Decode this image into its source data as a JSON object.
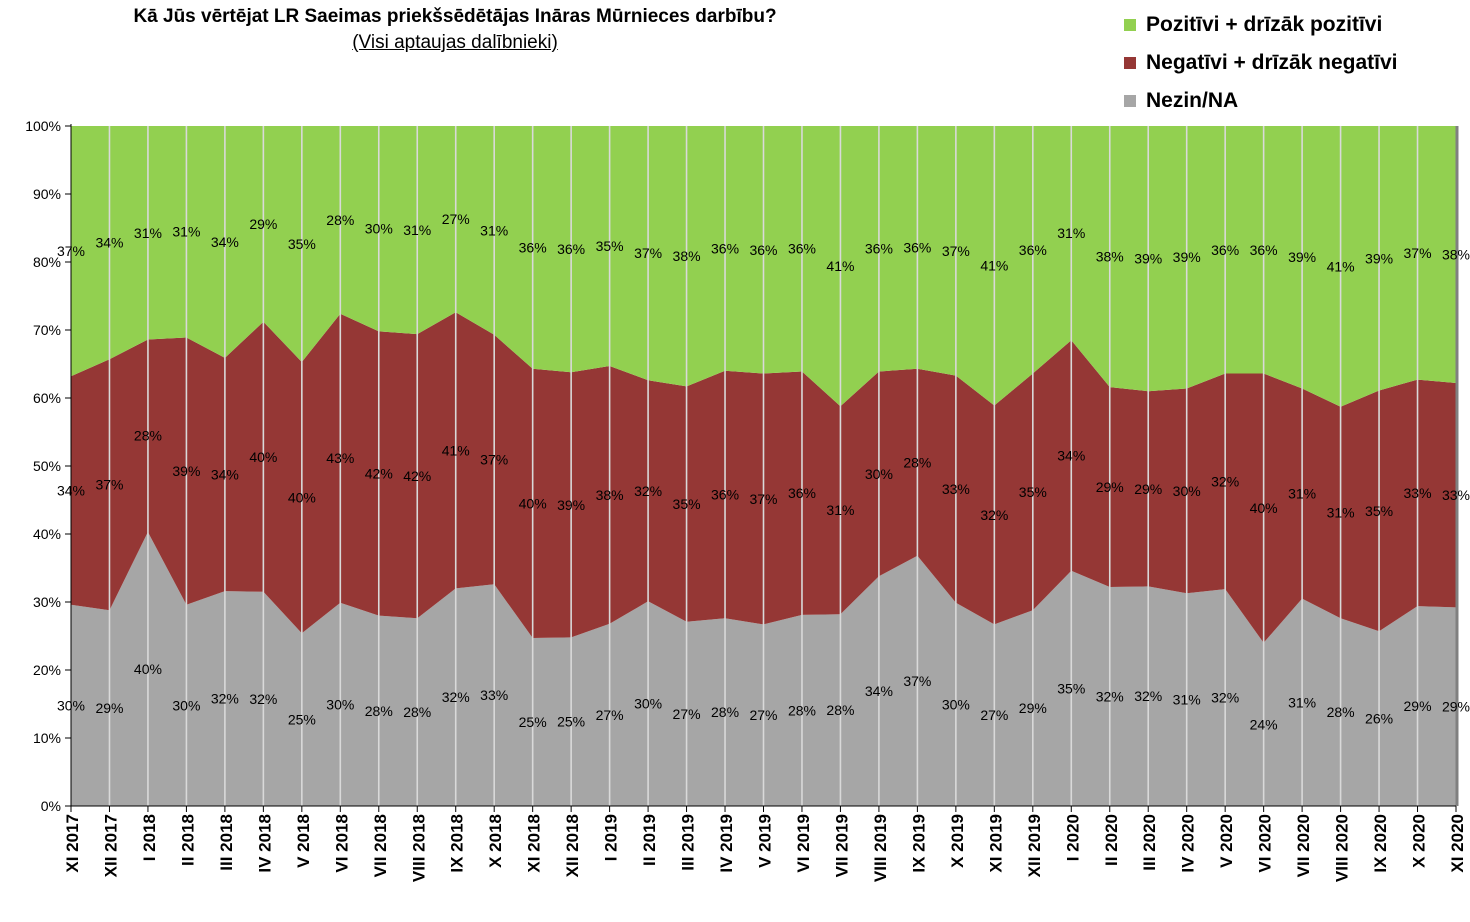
{
  "chart_data": {
    "type": "area",
    "stacked": true,
    "title": "Kā Jūs vērtējat LR Saeimas priekšsēdētājas Ināras Mūrnieces darbību?",
    "subtitle": "(Visi aptaujas dalībnieki)",
    "ylim": [
      0,
      100
    ],
    "yticks": [
      "0%",
      "10%",
      "20%",
      "30%",
      "40%",
      "50%",
      "60%",
      "70%",
      "80%",
      "90%",
      "100%"
    ],
    "legend_position": "top-right",
    "categories": [
      "XI 2017",
      "XII 2017",
      "I 2018",
      "II 2018",
      "III 2018",
      "IV 2018",
      "V 2018",
      "VI 2018",
      "VII 2018",
      "VIII 2018",
      "IX 2018",
      "X 2018",
      "XI 2018",
      "XII 2018",
      "I 2019",
      "II 2019",
      "III 2019",
      "IV 2019",
      "V 2019",
      "VI 2019",
      "VII 2019",
      "VIII 2019",
      "IX 2019",
      "X 2019",
      "XI 2019",
      "XII 2019",
      "I 2020",
      "II 2020",
      "III 2020",
      "IV 2020",
      "V 2020",
      "VI 2020",
      "VII 2020",
      "VIII 2020",
      "IX 2020",
      "X 2020",
      "XI 2020"
    ],
    "series": [
      {
        "name": "Nezin/NA",
        "color": "#a6a6a6",
        "values": [
          29.6,
          28.8,
          40.3,
          29.6,
          31.6,
          31.5,
          25.4,
          29.9,
          28.0,
          27.6,
          32.0,
          32.6,
          24.7,
          24.8,
          26.8,
          30.1,
          27.1,
          27.6,
          26.7,
          28.1,
          28.2,
          33.8,
          36.8,
          29.9,
          26.7,
          28.8,
          34.6,
          32.2,
          32.3,
          31.3,
          31.9,
          24.0,
          30.5,
          27.6,
          25.7,
          29.4,
          29.2
        ],
        "labels": [
          "30%",
          "29%",
          "40%",
          "30%",
          "32%",
          "32%",
          "25%",
          "30%",
          "28%",
          "28%",
          "32%",
          "33%",
          "25%",
          "25%",
          "27%",
          "30%",
          "27%",
          "28%",
          "27%",
          "28%",
          "28%",
          "34%",
          "37%",
          "30%",
          "27%",
          "29%",
          "35%",
          "32%",
          "32%",
          "31%",
          "32%",
          "24%",
          "31%",
          "28%",
          "26%",
          "29%",
          "29%"
        ]
      },
      {
        "name": "Negatīvi + drīzāk negatīvi",
        "color": "#953735",
        "values": [
          33.6,
          36.9,
          28.3,
          39.3,
          34.3,
          39.7,
          39.9,
          42.5,
          41.8,
          41.8,
          40.6,
          36.7,
          39.6,
          39.0,
          37.9,
          32.5,
          34.6,
          36.4,
          36.9,
          35.8,
          30.6,
          30.1,
          27.5,
          33.4,
          32.2,
          34.8,
          33.9,
          29.4,
          28.7,
          30.1,
          31.7,
          39.6,
          30.9,
          31.1,
          35.4,
          33.3,
          33.0
        ],
        "labels": [
          "34%",
          "37%",
          "28%",
          "39%",
          "34%",
          "40%",
          "40%",
          "43%",
          "42%",
          "42%",
          "41%",
          "37%",
          "40%",
          "39%",
          "38%",
          "32%",
          "35%",
          "36%",
          "37%",
          "36%",
          "31%",
          "30%",
          "28%",
          "33%",
          "32%",
          "35%",
          "34%",
          "29%",
          "29%",
          "30%",
          "32%",
          "40%",
          "31%",
          "31%",
          "35%",
          "33%",
          "33%"
        ]
      },
      {
        "name": "Pozitīvi + drīzāk pozitīvi",
        "color": "#92d050",
        "values": [
          36.8,
          34.3,
          31.4,
          31.1,
          34.1,
          28.8,
          34.7,
          27.6,
          30.2,
          30.6,
          27.4,
          30.7,
          35.7,
          36.2,
          35.3,
          37.4,
          38.3,
          36.0,
          36.4,
          36.1,
          41.2,
          36.1,
          35.7,
          36.7,
          41.1,
          36.4,
          31.5,
          38.4,
          39.0,
          38.6,
          36.4,
          36.4,
          38.6,
          41.3,
          38.9,
          37.3,
          37.8
        ],
        "labels": [
          "37%",
          "34%",
          "31%",
          "31%",
          "34%",
          "29%",
          "35%",
          "28%",
          "30%",
          "31%",
          "27%",
          "31%",
          "36%",
          "36%",
          "35%",
          "37%",
          "38%",
          "36%",
          "36%",
          "36%",
          "41%",
          "36%",
          "36%",
          "37%",
          "41%",
          "36%",
          "31%",
          "38%",
          "39%",
          "39%",
          "36%",
          "36%",
          "39%",
          "41%",
          "39%",
          "37%",
          "38%"
        ]
      }
    ]
  }
}
